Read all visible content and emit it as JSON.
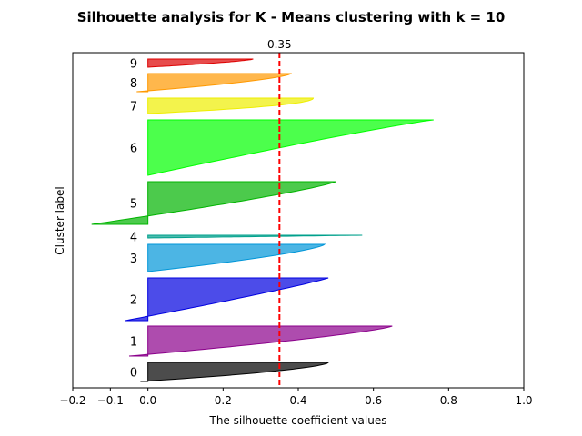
{
  "chart_data": {
    "type": "area",
    "title": "Silhouette analysis for K - Means clustering with k = 10",
    "xlabel": "The silhouette coefficient values",
    "ylabel": "Cluster label",
    "xlim": [
      -0.2,
      1.0
    ],
    "x_ticks": [
      -0.2,
      -0.1,
      0.0,
      0.2,
      0.4,
      0.6,
      0.8,
      1.0
    ],
    "x_tick_labels": [
      "−0.2",
      "−0.1",
      "0.0",
      "0.2",
      "0.4",
      "0.6",
      "0.8",
      "1.0"
    ],
    "grid": false,
    "average_silhouette": 0.35,
    "average_line_color": "#ff0000",
    "average_label": "0.35",
    "clusters": [
      {
        "label": "0",
        "color": "#000000",
        "max": 0.48,
        "min": -0.02,
        "shape": 1.6
      },
      {
        "label": "1",
        "color": "#8b008b",
        "max": 0.65,
        "min": -0.05,
        "shape": 1.3
      },
      {
        "label": "2",
        "color": "#0000e0",
        "max": 0.48,
        "min": -0.06,
        "shape": 1.1
      },
      {
        "label": "3",
        "color": "#0096d8",
        "max": 0.47,
        "min": 0.0,
        "shape": 1.4
      },
      {
        "label": "4",
        "color": "#00a08c",
        "max": 0.57,
        "min": 0.0,
        "shape": 1.0
      },
      {
        "label": "5",
        "color": "#00b400",
        "max": 0.5,
        "min": -0.15,
        "shape": 1.2
      },
      {
        "label": "6",
        "color": "#00ff00",
        "max": 0.76,
        "min": 0.0,
        "shape": 0.9
      },
      {
        "label": "7",
        "color": "#eeee00",
        "max": 0.44,
        "min": 0.0,
        "shape": 2.0
      },
      {
        "label": "8",
        "color": "#ff9900",
        "max": 0.38,
        "min": -0.03,
        "shape": 1.5
      },
      {
        "label": "9",
        "color": "#dd0000",
        "max": 0.28,
        "min": 0.0,
        "shape": 1.4
      }
    ]
  }
}
